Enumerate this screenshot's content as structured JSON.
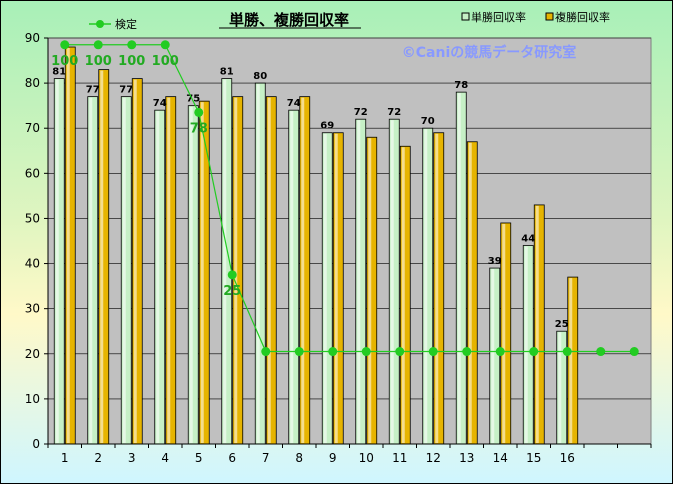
{
  "chart_data": {
    "type": "bar",
    "title": "単勝、複勝回収率",
    "watermark": "©Caniの競馬データ研究室",
    "categories": [
      "1",
      "2",
      "3",
      "4",
      "5",
      "6",
      "7",
      "8",
      "9",
      "10",
      "11",
      "12",
      "13",
      "14",
      "15",
      "16"
    ],
    "ylim": [
      0,
      90
    ],
    "yticks": [
      0,
      10,
      20,
      30,
      40,
      50,
      60,
      70,
      80,
      90
    ],
    "grid": true,
    "legend_position": "top",
    "series": [
      {
        "name": "単勝回収率",
        "values": [
          81,
          77,
          77,
          74,
          75,
          81,
          80,
          74,
          69,
          72,
          72,
          70,
          78,
          39,
          44,
          25
        ],
        "color": "#c6f0c6"
      },
      {
        "name": "複勝回収率",
        "values": [
          88,
          83,
          81,
          77,
          76,
          77,
          77,
          77,
          69,
          68,
          66,
          69,
          67,
          49,
          53,
          37
        ],
        "color": "#e6b400"
      }
    ],
    "test_line": {
      "name": "検定",
      "x": [
        "1",
        "2",
        "3",
        "4",
        "5",
        "6",
        "7",
        "8",
        "9",
        "10",
        "11",
        "12",
        "13",
        "14",
        "15",
        "16",
        "17",
        "18"
      ],
      "plot_values": [
        88.5,
        88.5,
        88.5,
        88.5,
        73.5,
        37.5,
        20.5,
        20.5,
        20.5,
        20.5,
        20.5,
        20.5,
        20.5,
        20.5,
        20.5,
        20.5,
        20.5,
        20.5
      ],
      "labels": [
        "100",
        "100",
        "100",
        "100",
        "78",
        "25",
        "",
        "",
        "",
        "",
        "",
        "",
        "",
        "",
        "",
        "",
        "",
        ""
      ],
      "color": "#22cc22"
    }
  }
}
